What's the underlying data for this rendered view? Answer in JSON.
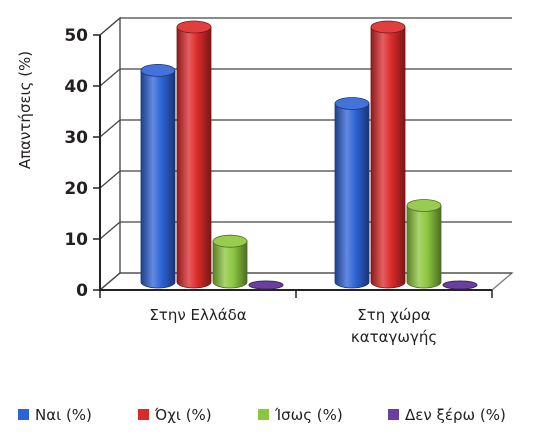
{
  "chart_data": {
    "type": "bar",
    "style": "3d-cylinder",
    "title": "",
    "xlabel": "",
    "ylabel": "Απαντήσεις (%)",
    "ylim": [
      0,
      50
    ],
    "yticks": [
      0,
      10,
      20,
      30,
      40,
      50
    ],
    "grid": true,
    "legend_position": "bottom",
    "categories": [
      [
        "Στην Ελλάδα"
      ],
      [
        "Στη χώρα",
        "καταγωγής"
      ]
    ],
    "series": [
      {
        "name": "Ναι (%)",
        "values": [
          41.5,
          35
        ],
        "color": "#2e63d6"
      },
      {
        "name": "Όχι (%)",
        "values": [
          50,
          50
        ],
        "color": "#dc2a2a"
      },
      {
        "name": "Ίσως (%)",
        "values": [
          8,
          15
        ],
        "color": "#8cc63e"
      },
      {
        "name": "Δεν ξέρω (%)",
        "values": [
          0,
          0
        ],
        "color": "#6a3fa0"
      }
    ]
  }
}
